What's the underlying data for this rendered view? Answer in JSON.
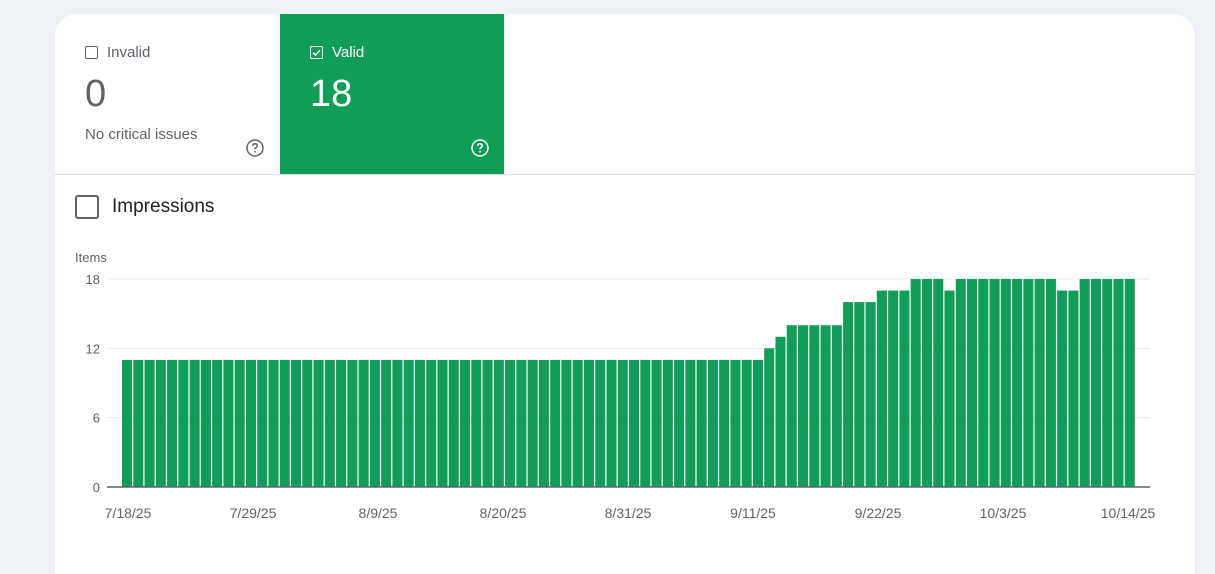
{
  "tiles": {
    "invalid": {
      "label": "Invalid",
      "value": "0",
      "subtitle": "No critical issues"
    },
    "valid": {
      "label": "Valid",
      "value": "18"
    }
  },
  "impressions": {
    "label": "Impressions"
  },
  "colors": {
    "valid_green": "#0f9d58",
    "bar_green": "#0f9d58",
    "grid": "#e8eaed"
  },
  "chart_data": {
    "type": "bar",
    "ylabel": "Items",
    "ylim": [
      0,
      18
    ],
    "yticks": [
      "0",
      "6",
      "12",
      "18"
    ],
    "xticks": [
      "7/18/25",
      "7/29/25",
      "8/9/25",
      "8/20/25",
      "8/31/25",
      "9/11/25",
      "9/22/25",
      "10/3/25",
      "10/14/25"
    ],
    "grid": true,
    "series": [
      {
        "values": [
          11,
          11,
          11,
          11,
          11,
          11,
          11,
          11,
          11,
          11,
          11,
          11,
          11,
          11,
          11,
          11,
          11,
          11,
          11,
          11,
          11,
          11,
          11,
          11,
          11,
          11,
          11,
          11,
          11,
          11,
          11,
          11,
          11,
          11,
          11,
          11,
          11,
          11,
          11,
          11,
          11,
          11,
          11,
          11,
          11,
          11,
          11,
          11,
          11,
          11,
          11,
          11,
          11,
          11,
          11,
          11,
          11,
          12,
          13,
          14,
          14,
          14,
          14,
          14,
          16,
          16,
          16,
          17,
          17,
          17,
          18,
          18,
          18,
          17,
          18,
          18,
          18,
          18,
          18,
          18,
          18,
          18,
          18,
          17,
          17,
          18,
          18,
          18,
          18,
          18
        ]
      }
    ]
  }
}
